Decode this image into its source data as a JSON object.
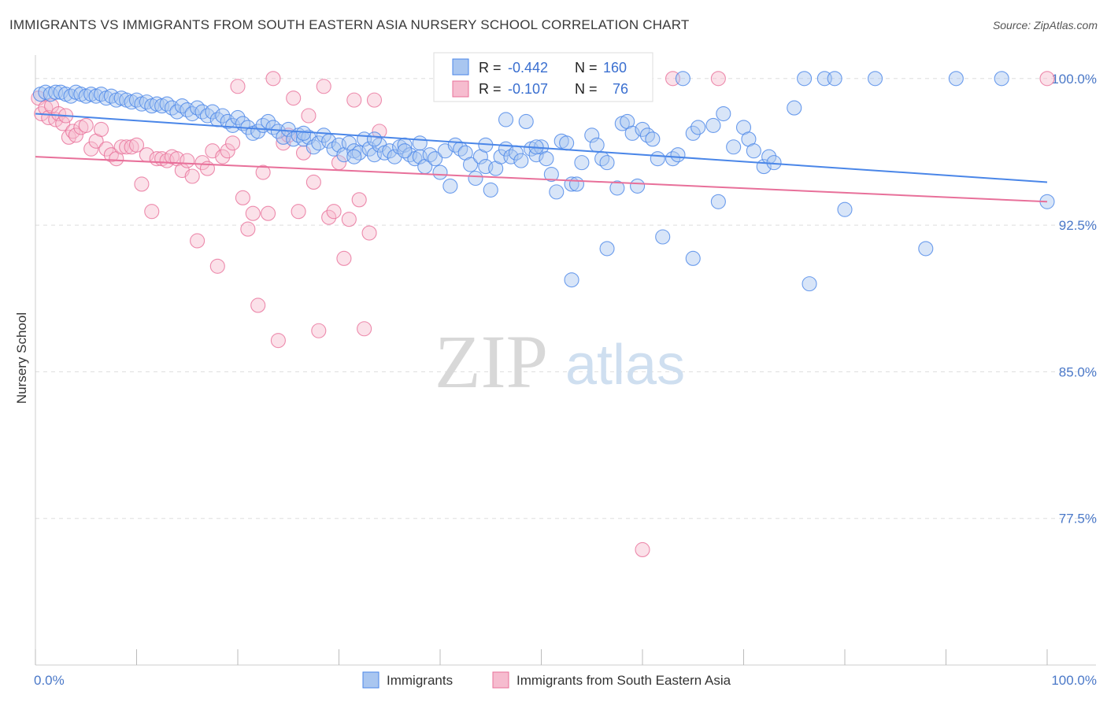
{
  "header": {
    "title": "IMMIGRANTS VS IMMIGRANTS FROM SOUTH EASTERN ASIA NURSERY SCHOOL CORRELATION CHART",
    "source": "Source: ZipAtlas.com"
  },
  "watermark": {
    "zip": "ZIP",
    "atlas": "atlas"
  },
  "colors": {
    "blue": "#4a86e8",
    "blue_fill": "#a9c6f0",
    "pink": "#e8709a",
    "pink_fill": "#f6bccf",
    "tick_text": "#4a78c8",
    "grid": "#dddddd"
  },
  "chart_data": {
    "type": "scatter",
    "title": "IMMIGRANTS VS IMMIGRANTS FROM SOUTH EASTERN ASIA NURSERY SCHOOL CORRELATION CHART",
    "xlabel": "",
    "ylabel": "Nursery School",
    "xlim": [
      0,
      100
    ],
    "ylim": [
      70.0,
      101.2
    ],
    "x_tick_labels": [
      "0.0%",
      "100.0%"
    ],
    "y_ticks": [
      {
        "value": 100.0,
        "label": "100.0%"
      },
      {
        "value": 92.5,
        "label": "92.5%"
      },
      {
        "value": 85.0,
        "label": "85.0%"
      },
      {
        "value": 77.5,
        "label": "77.5%"
      }
    ],
    "grid": true,
    "legend_position": "bottom",
    "stats": [
      {
        "series": "Immigrants",
        "r_label": "R =",
        "r": "-0.442",
        "n_label": "N =",
        "n": "160"
      },
      {
        "series": "Immigrants from South Eastern Asia",
        "r_label": "R =",
        "r": "-0.107",
        "n_label": "N =",
        "n": "76"
      }
    ],
    "series": [
      {
        "name": "Immigrants",
        "color": "#4a86e8",
        "trend": {
          "x": [
            0,
            100
          ],
          "y": [
            98.2,
            94.7
          ]
        },
        "points": [
          [
            0.5,
            99.2
          ],
          [
            1.0,
            99.3
          ],
          [
            1.5,
            99.2
          ],
          [
            2.0,
            99.3
          ],
          [
            2.5,
            99.3
          ],
          [
            3.0,
            99.2
          ],
          [
            3.5,
            99.1
          ],
          [
            4.0,
            99.3
          ],
          [
            4.5,
            99.2
          ],
          [
            5.0,
            99.1
          ],
          [
            5.5,
            99.2
          ],
          [
            6.0,
            99.1
          ],
          [
            6.5,
            99.2
          ],
          [
            7.0,
            99.0
          ],
          [
            7.5,
            99.1
          ],
          [
            8.0,
            98.9
          ],
          [
            8.5,
            99.0
          ],
          [
            9.0,
            98.9
          ],
          [
            9.5,
            98.8
          ],
          [
            10.0,
            98.9
          ],
          [
            10.5,
            98.7
          ],
          [
            11.0,
            98.8
          ],
          [
            11.5,
            98.6
          ],
          [
            12.0,
            98.7
          ],
          [
            12.5,
            98.6
          ],
          [
            13.0,
            98.7
          ],
          [
            13.5,
            98.5
          ],
          [
            14.0,
            98.3
          ],
          [
            14.5,
            98.6
          ],
          [
            15.0,
            98.4
          ],
          [
            15.5,
            98.2
          ],
          [
            16.0,
            98.5
          ],
          [
            16.5,
            98.3
          ],
          [
            17.0,
            98.1
          ],
          [
            17.5,
            98.3
          ],
          [
            18.0,
            97.9
          ],
          [
            18.5,
            98.1
          ],
          [
            19.0,
            97.8
          ],
          [
            19.5,
            97.6
          ],
          [
            20.0,
            98.0
          ],
          [
            20.5,
            97.7
          ],
          [
            21.0,
            97.5
          ],
          [
            21.5,
            97.2
          ],
          [
            22.0,
            97.3
          ],
          [
            22.5,
            97.6
          ],
          [
            23.0,
            97.8
          ],
          [
            23.5,
            97.5
          ],
          [
            24.0,
            97.3
          ],
          [
            24.5,
            97.0
          ],
          [
            25.0,
            97.4
          ],
          [
            25.5,
            96.9
          ],
          [
            26.0,
            97.1
          ],
          [
            26.5,
            96.9
          ],
          [
            27.0,
            97.0
          ],
          [
            27.5,
            96.5
          ],
          [
            28.0,
            96.7
          ],
          [
            28.5,
            97.1
          ],
          [
            29.0,
            96.8
          ],
          [
            29.5,
            96.4
          ],
          [
            30.0,
            96.6
          ],
          [
            30.5,
            96.1
          ],
          [
            31.0,
            96.7
          ],
          [
            31.5,
            96.3
          ],
          [
            32.0,
            96.2
          ],
          [
            32.5,
            96.9
          ],
          [
            33.0,
            96.4
          ],
          [
            33.5,
            96.1
          ],
          [
            34.0,
            96.6
          ],
          [
            34.5,
            96.2
          ],
          [
            35.0,
            96.3
          ],
          [
            35.5,
            96.0
          ],
          [
            36.0,
            96.5
          ],
          [
            36.5,
            96.6
          ],
          [
            37.0,
            96.1
          ],
          [
            37.5,
            95.9
          ],
          [
            38.0,
            96.0
          ],
          [
            38.5,
            95.5
          ],
          [
            39.0,
            96.1
          ],
          [
            39.5,
            95.9
          ],
          [
            40.0,
            95.2
          ],
          [
            40.5,
            96.3
          ],
          [
            41.0,
            94.5
          ],
          [
            41.5,
            96.6
          ],
          [
            42.0,
            96.4
          ],
          [
            42.5,
            96.2
          ],
          [
            43.0,
            95.6
          ],
          [
            43.5,
            94.9
          ],
          [
            44.0,
            96.0
          ],
          [
            44.5,
            95.5
          ],
          [
            45.0,
            94.3
          ],
          [
            45.5,
            95.4
          ],
          [
            46.0,
            96.0
          ],
          [
            46.5,
            96.4
          ],
          [
            47.0,
            96.0
          ],
          [
            47.5,
            96.2
          ],
          [
            48.0,
            95.8
          ],
          [
            48.5,
            97.8
          ],
          [
            49.0,
            96.4
          ],
          [
            49.5,
            96.1
          ],
          [
            50.0,
            96.5
          ],
          [
            50.5,
            95.9
          ],
          [
            51.0,
            95.1
          ],
          [
            51.5,
            94.2
          ],
          [
            52.0,
            96.8
          ],
          [
            52.5,
            96.7
          ],
          [
            53.0,
            94.6
          ],
          [
            53.5,
            94.6
          ],
          [
            54.0,
            95.7
          ],
          [
            55.0,
            97.1
          ],
          [
            55.5,
            96.6
          ],
          [
            56.0,
            95.9
          ],
          [
            56.5,
            95.7
          ],
          [
            57.0,
            99.2
          ],
          [
            57.5,
            94.4
          ],
          [
            58.0,
            97.7
          ],
          [
            58.5,
            97.8
          ],
          [
            59.0,
            97.2
          ],
          [
            59.5,
            94.5
          ],
          [
            60.0,
            97.4
          ],
          [
            60.5,
            97.1
          ],
          [
            61.0,
            96.9
          ],
          [
            61.5,
            95.9
          ],
          [
            62.0,
            91.9
          ],
          [
            63.0,
            95.9
          ],
          [
            63.5,
            96.1
          ],
          [
            64.0,
            100.0
          ],
          [
            65.0,
            97.2
          ],
          [
            65.5,
            97.5
          ],
          [
            67.0,
            97.6
          ],
          [
            67.5,
            93.7
          ],
          [
            68.0,
            98.2
          ],
          [
            69.0,
            96.5
          ],
          [
            70.0,
            97.5
          ],
          [
            70.5,
            96.9
          ],
          [
            71.0,
            96.3
          ],
          [
            72.0,
            95.5
          ],
          [
            72.5,
            96.0
          ],
          [
            73.0,
            95.7
          ],
          [
            75.0,
            98.5
          ],
          [
            76.0,
            100.0
          ],
          [
            78.0,
            100.0
          ],
          [
            79.0,
            100.0
          ],
          [
            80.0,
            93.3
          ],
          [
            83.0,
            100.0
          ],
          [
            88.0,
            91.3
          ],
          [
            91.0,
            100.0
          ],
          [
            95.5,
            100.0
          ],
          [
            100.0,
            93.7
          ],
          [
            65.0,
            90.8
          ],
          [
            76.5,
            89.5
          ],
          [
            53.0,
            89.7
          ],
          [
            56.5,
            91.3
          ],
          [
            46.5,
            97.9
          ],
          [
            38.0,
            96.7
          ],
          [
            26.5,
            97.2
          ],
          [
            33.5,
            96.9
          ],
          [
            44.5,
            96.6
          ],
          [
            49.5,
            96.5
          ],
          [
            36.5,
            96.3
          ],
          [
            31.5,
            96.0
          ]
        ]
      },
      {
        "name": "Immigrants from South Eastern Asia",
        "color": "#e8709a",
        "trend": {
          "x": [
            0,
            100
          ],
          "y": [
            96.0,
            93.7
          ]
        },
        "points": [
          [
            0.3,
            99.0
          ],
          [
            0.6,
            98.2
          ],
          [
            1.0,
            98.5
          ],
          [
            1.3,
            98.0
          ],
          [
            1.6,
            98.6
          ],
          [
            2.0,
            97.9
          ],
          [
            2.3,
            98.2
          ],
          [
            2.7,
            97.7
          ],
          [
            3.0,
            98.1
          ],
          [
            3.3,
            97.0
          ],
          [
            3.7,
            97.3
          ],
          [
            4.0,
            97.1
          ],
          [
            4.5,
            97.5
          ],
          [
            5.0,
            97.6
          ],
          [
            5.5,
            96.4
          ],
          [
            6.0,
            96.8
          ],
          [
            6.5,
            97.4
          ],
          [
            7.0,
            96.4
          ],
          [
            7.5,
            96.1
          ],
          [
            8.0,
            95.9
          ],
          [
            8.5,
            96.5
          ],
          [
            9.0,
            96.5
          ],
          [
            9.5,
            96.5
          ],
          [
            10.0,
            96.6
          ],
          [
            10.5,
            94.6
          ],
          [
            11.0,
            96.1
          ],
          [
            11.5,
            93.2
          ],
          [
            12.0,
            95.9
          ],
          [
            12.5,
            95.9
          ],
          [
            13.0,
            95.8
          ],
          [
            13.5,
            96.0
          ],
          [
            14.0,
            95.9
          ],
          [
            14.5,
            95.3
          ],
          [
            15.0,
            95.8
          ],
          [
            15.5,
            95.0
          ],
          [
            16.0,
            91.7
          ],
          [
            16.5,
            95.7
          ],
          [
            17.0,
            95.4
          ],
          [
            17.5,
            96.3
          ],
          [
            18.0,
            90.4
          ],
          [
            18.5,
            96.0
          ],
          [
            19.0,
            96.3
          ],
          [
            19.5,
            96.7
          ],
          [
            20.0,
            99.6
          ],
          [
            20.5,
            93.9
          ],
          [
            21.0,
            92.3
          ],
          [
            21.5,
            93.1
          ],
          [
            22.0,
            88.4
          ],
          [
            22.5,
            95.2
          ],
          [
            23.0,
            93.1
          ],
          [
            23.5,
            100.0
          ],
          [
            24.0,
            86.6
          ],
          [
            24.5,
            96.7
          ],
          [
            25.0,
            97.1
          ],
          [
            25.5,
            99.0
          ],
          [
            26.0,
            93.2
          ],
          [
            26.5,
            96.2
          ],
          [
            27.0,
            98.1
          ],
          [
            27.5,
            94.7
          ],
          [
            28.0,
            87.1
          ],
          [
            28.5,
            99.6
          ],
          [
            29.0,
            92.9
          ],
          [
            29.5,
            93.2
          ],
          [
            30.0,
            95.7
          ],
          [
            30.5,
            90.8
          ],
          [
            31.0,
            92.8
          ],
          [
            31.5,
            98.9
          ],
          [
            32.0,
            93.8
          ],
          [
            32.5,
            87.2
          ],
          [
            33.0,
            92.1
          ],
          [
            33.5,
            98.9
          ],
          [
            34.0,
            97.3
          ],
          [
            60.0,
            75.9
          ],
          [
            63.0,
            100.0
          ],
          [
            67.5,
            100.0
          ],
          [
            100.0,
            100.0
          ]
        ]
      }
    ]
  }
}
